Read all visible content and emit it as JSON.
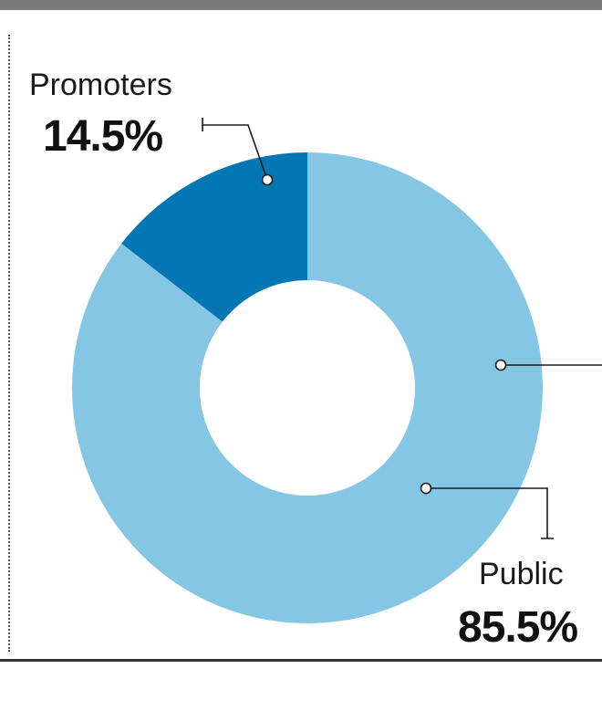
{
  "chart_data": {
    "type": "pie",
    "donut": true,
    "slices": [
      {
        "label": "Promoters",
        "value": 14.5,
        "value_label": "14.5%",
        "color": "#0277b3"
      },
      {
        "label": "Public",
        "value": 85.5,
        "value_label": "85.5%",
        "color": "#85c6e5"
      }
    ]
  }
}
